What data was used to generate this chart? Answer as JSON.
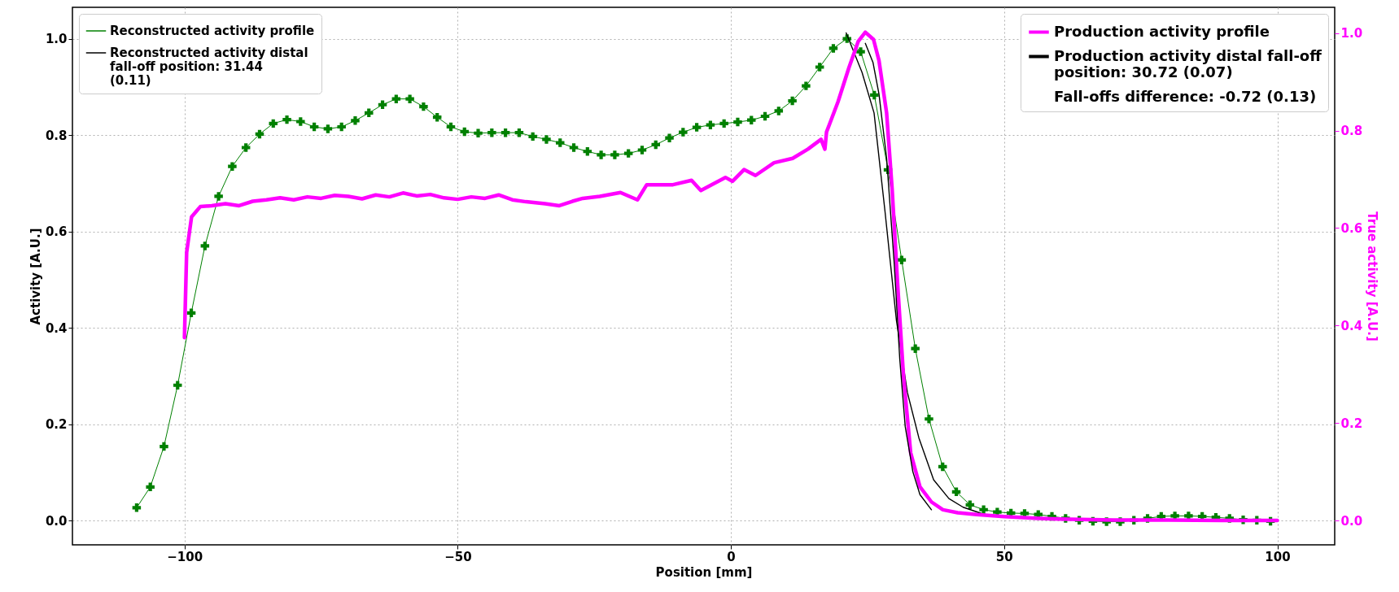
{
  "chart_data": {
    "type": "line",
    "xlabel": "Position [mm]",
    "ylabel": "Activity [A.U.]",
    "y2label": "True activity [A.U.]",
    "xlim": [
      -120.5,
      110.5
    ],
    "xticks": [
      -100,
      -50,
      0,
      50,
      100
    ],
    "ylim": [
      -0.05,
      1.065
    ],
    "yticks": [
      {
        "value": 0,
        "label": "0.0"
      },
      {
        "value": 0.2,
        "label": "0.2"
      },
      {
        "value": 0.4,
        "label": "0.4"
      },
      {
        "value": 0.6,
        "label": "0.6"
      },
      {
        "value": 0.8,
        "label": "0.8"
      },
      {
        "value": 1,
        "label": "1.0"
      }
    ],
    "y2lim": [
      -0.05,
      1.053
    ],
    "y2ticks": [
      {
        "value": 0,
        "label": "0.0"
      },
      {
        "value": 0.2,
        "label": "0.2"
      },
      {
        "value": 0.4,
        "label": "0.4"
      },
      {
        "value": 0.6,
        "label": "0.6"
      },
      {
        "value": 0.8,
        "label": "0.8"
      },
      {
        "value": 1,
        "label": "1.0"
      }
    ],
    "grid": true,
    "legend": "top left",
    "annotations": [
      "Fall-offs difference: -0.72 (0.13)"
    ],
    "series": [
      {
        "name": "Reconstructed activity profile",
        "color": "#008000",
        "marker": "cross",
        "x": [
          -108.75,
          -106.25,
          -103.75,
          -101.25,
          -98.75,
          -96.25,
          -93.75,
          -91.25,
          -88.75,
          -86.25,
          -83.75,
          -81.25,
          -78.75,
          -76.25,
          -73.75,
          -71.25,
          -68.75,
          -66.25,
          -63.75,
          -61.25,
          -58.75,
          -56.25,
          -53.75,
          -51.25,
          -48.75,
          -46.25,
          -43.75,
          -41.25,
          -38.75,
          -36.25,
          -33.75,
          -31.25,
          -28.75,
          -26.25,
          -23.75,
          -21.25,
          -18.75,
          -16.25,
          -13.75,
          -11.25,
          -8.75,
          -6.25,
          -3.75,
          -1.25,
          1.25,
          3.75,
          6.25,
          8.75,
          11.25,
          13.75,
          16.25,
          18.75,
          21.25,
          23.75,
          26.25,
          28.75,
          31.25,
          33.75,
          36.25,
          38.75,
          41.25,
          43.75,
          46.25,
          48.75,
          51.25,
          53.75,
          56.25,
          58.75,
          61.25,
          63.75,
          66.25,
          68.75,
          71.25,
          73.75,
          76.25,
          78.75,
          81.25,
          83.75,
          86.25,
          88.75,
          91.25,
          93.75,
          96.25,
          98.75
        ],
        "values": [
          0.027,
          0.07,
          0.154,
          0.281,
          0.431,
          0.57,
          0.673,
          0.735,
          0.774,
          0.802,
          0.824,
          0.832,
          0.828,
          0.817,
          0.813,
          0.817,
          0.83,
          0.846,
          0.863,
          0.875,
          0.875,
          0.859,
          0.837,
          0.817,
          0.807,
          0.804,
          0.805,
          0.805,
          0.805,
          0.797,
          0.791,
          0.784,
          0.774,
          0.766,
          0.759,
          0.759,
          0.762,
          0.769,
          0.78,
          0.794,
          0.806,
          0.816,
          0.821,
          0.824,
          0.827,
          0.831,
          0.839,
          0.85,
          0.871,
          0.902,
          0.941,
          0.98,
          1.0,
          0.973,
          0.883,
          0.728,
          0.541,
          0.357,
          0.211,
          0.112,
          0.06,
          0.033,
          0.023,
          0.018,
          0.016,
          0.015,
          0.013,
          0.009,
          0.005,
          0.001,
          -0.001,
          -0.002,
          -0.002,
          0.001,
          0.005,
          0.009,
          0.01,
          0.01,
          0.009,
          0.007,
          0.005,
          0.002,
          0.001,
          -0.001
        ]
      },
      {
        "name": "Reconstructed activity distal fall-off position: 31.44 (0.11)",
        "color": "#000000",
        "x": [
          21.1,
          24.0,
          26.2,
          28.2,
          30.3,
          32.3,
          34.4,
          37.1,
          39.9,
          42.5,
          45.9
        ],
        "values": [
          1.012,
          0.93,
          0.846,
          0.642,
          0.415,
          0.266,
          0.172,
          0.085,
          0.046,
          0.028,
          0.015
        ]
      },
      {
        "name": "Production activity profile",
        "color": "#ff00ff",
        "axis": "y2",
        "x": [
          -100,
          -99.6,
          -98.7,
          -97.1,
          -95,
          -92.5,
          -90,
          -87.5,
          -85,
          -82.5,
          -80,
          -77.5,
          -75,
          -72.5,
          -70,
          -67.5,
          -65,
          -62.5,
          -60,
          -57.5,
          -55,
          -52.5,
          -50,
          -47.5,
          -45,
          -42.5,
          -40,
          -37.5,
          -34,
          -31.4,
          -29,
          -27.1,
          -24,
          -20.2,
          -17.1,
          -15.4,
          -10.6,
          -7.2,
          -5.5,
          -1.0,
          0.3,
          2.4,
          4.5,
          7.9,
          11.3,
          14.1,
          16.5,
          17.2,
          17.5,
          19.6,
          21.6,
          23.3,
          24.6,
          26.1,
          27.1,
          28.5,
          29.5,
          30.5,
          31.6,
          32.9,
          34.6,
          36.7,
          38.8,
          41.5,
          45,
          50,
          55,
          60,
          70,
          80,
          90,
          100
        ],
        "values": [
          0.375,
          0.55,
          0.623,
          0.644,
          0.646,
          0.65,
          0.646,
          0.655,
          0.658,
          0.662,
          0.658,
          0.664,
          0.661,
          0.667,
          0.665,
          0.66,
          0.668,
          0.664,
          0.672,
          0.666,
          0.669,
          0.662,
          0.659,
          0.664,
          0.661,
          0.668,
          0.658,
          0.654,
          0.65,
          0.646,
          0.655,
          0.661,
          0.665,
          0.673,
          0.658,
          0.689,
          0.689,
          0.698,
          0.677,
          0.704,
          0.696,
          0.72,
          0.708,
          0.734,
          0.743,
          0.762,
          0.782,
          0.762,
          0.797,
          0.859,
          0.929,
          0.983,
          1.002,
          0.987,
          0.944,
          0.836,
          0.681,
          0.487,
          0.294,
          0.139,
          0.069,
          0.038,
          0.022,
          0.016,
          0.012,
          0.008,
          0.005,
          0.003,
          0.001,
          0.001,
          0.0,
          0.0
        ]
      },
      {
        "name": "Production activity distal fall-off position: 30.72 (0.07)",
        "color": "#000000",
        "axis": "y2",
        "x": [
          24.6,
          26.0,
          27.1,
          28.5,
          29.9,
          30.9,
          31.9,
          33.3,
          34.6,
          36.7
        ],
        "values": [
          0.979,
          0.94,
          0.875,
          0.743,
          0.526,
          0.332,
          0.193,
          0.1,
          0.053,
          0.022
        ]
      }
    ]
  }
}
